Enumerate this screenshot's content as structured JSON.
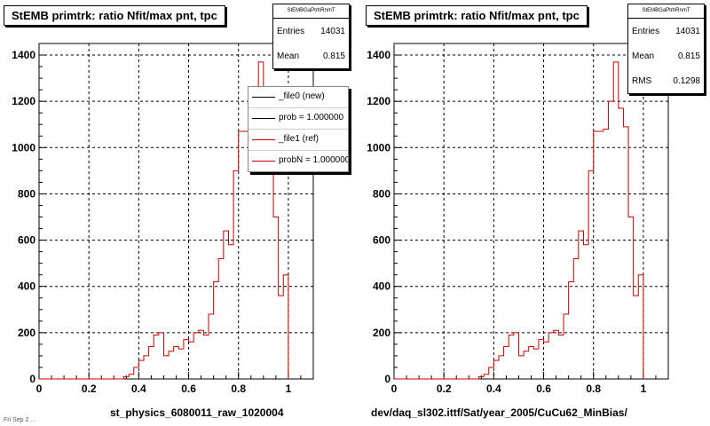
{
  "colors": {
    "new": "#000000",
    "ref": "#cc0000",
    "grid": "#000000"
  },
  "footer_text": "Fri Sep 2 ...",
  "chart_data": [
    {
      "type": "bar",
      "title": "StEMB primtrk: ratio Nfit/max pnt, tpc",
      "xlabel": "st_physics_6080011_raw_1020004",
      "ylabel": "",
      "xlim": [
        0,
        1.1
      ],
      "ylim": [
        0,
        1450
      ],
      "grid": true,
      "x_ticks": [
        "0",
        "0.2",
        "0.4",
        "0.6",
        "0.8",
        "1"
      ],
      "y_ticks": [
        "0",
        "200",
        "400",
        "600",
        "800",
        "1000",
        "1200",
        "1400"
      ],
      "stats": {
        "header": "StEMBGaPtrhRnmT",
        "rows": [
          {
            "label": "Entries",
            "value": "14031"
          },
          {
            "label": "Mean",
            "value": "0.815"
          }
        ]
      },
      "legend": [
        {
          "label": "_file0 (new)",
          "color": "#000000"
        },
        {
          "label": "prob = 1.000000",
          "color": "#000000"
        },
        {
          "label": "_file1 (ref)",
          "color": "#cc0000"
        },
        {
          "label": "probN = 1.000000",
          "color": "#cc0000"
        }
      ],
      "series": [
        {
          "color": "#cc0000",
          "bin_edges": [
            0.0,
            0.02,
            0.04,
            0.06,
            0.08,
            0.1,
            0.12,
            0.14,
            0.16,
            0.18,
            0.2,
            0.22,
            0.24,
            0.26,
            0.28,
            0.3,
            0.32,
            0.34,
            0.36,
            0.38,
            0.4,
            0.42,
            0.44,
            0.46,
            0.48,
            0.5,
            0.52,
            0.54,
            0.56,
            0.58,
            0.6,
            0.62,
            0.64,
            0.66,
            0.68,
            0.7,
            0.72,
            0.74,
            0.76,
            0.78,
            0.8,
            0.82,
            0.84,
            0.86,
            0.88,
            0.9,
            0.92,
            0.94,
            0.96,
            0.98,
            1.0
          ],
          "values": [
            0,
            0,
            0,
            0,
            0,
            0,
            0,
            0,
            0,
            0,
            0,
            0,
            0,
            0,
            0,
            0,
            0,
            10,
            20,
            50,
            80,
            100,
            140,
            190,
            200,
            100,
            120,
            140,
            130,
            170,
            160,
            200,
            210,
            190,
            280,
            420,
            520,
            640,
            580,
            900,
            1070,
            1070,
            1080,
            1200,
            1370,
            1170,
            1090,
            700,
            360,
            450
          ]
        }
      ]
    },
    {
      "type": "bar",
      "title": "StEMB primtrk: ratio Nfit/max pnt, tpc",
      "xlabel": "dev/daq_sl302.ittf/Sat/year_2005/CuCu62_MinBias/",
      "ylabel": "",
      "xlim": [
        0,
        1.1
      ],
      "ylim": [
        0,
        1450
      ],
      "grid": true,
      "x_ticks": [
        "0",
        "0.2",
        "0.4",
        "0.6",
        "0.8",
        "1"
      ],
      "y_ticks": [
        "0",
        "200",
        "400",
        "600",
        "800",
        "1000",
        "1200",
        "1400"
      ],
      "stats": {
        "header": "StEMBGaPtrhRnmT",
        "rows": [
          {
            "label": "Entries",
            "value": "14031"
          },
          {
            "label": "Mean",
            "value": "0.815"
          },
          {
            "label": "RMS",
            "value": "0.1298"
          }
        ]
      },
      "series": [
        {
          "color": "#cc0000",
          "bin_edges": [
            0.0,
            0.02,
            0.04,
            0.06,
            0.08,
            0.1,
            0.12,
            0.14,
            0.16,
            0.18,
            0.2,
            0.22,
            0.24,
            0.26,
            0.28,
            0.3,
            0.32,
            0.34,
            0.36,
            0.38,
            0.4,
            0.42,
            0.44,
            0.46,
            0.48,
            0.5,
            0.52,
            0.54,
            0.56,
            0.58,
            0.6,
            0.62,
            0.64,
            0.66,
            0.68,
            0.7,
            0.72,
            0.74,
            0.76,
            0.78,
            0.8,
            0.82,
            0.84,
            0.86,
            0.88,
            0.9,
            0.92,
            0.94,
            0.96,
            0.98,
            1.0
          ],
          "values": [
            0,
            0,
            0,
            0,
            0,
            0,
            0,
            0,
            0,
            0,
            0,
            0,
            0,
            0,
            0,
            0,
            0,
            10,
            20,
            50,
            80,
            100,
            140,
            190,
            200,
            100,
            120,
            140,
            130,
            170,
            160,
            200,
            210,
            190,
            280,
            420,
            520,
            640,
            580,
            900,
            1070,
            1070,
            1080,
            1200,
            1370,
            1170,
            1090,
            700,
            360,
            450
          ]
        }
      ]
    }
  ]
}
